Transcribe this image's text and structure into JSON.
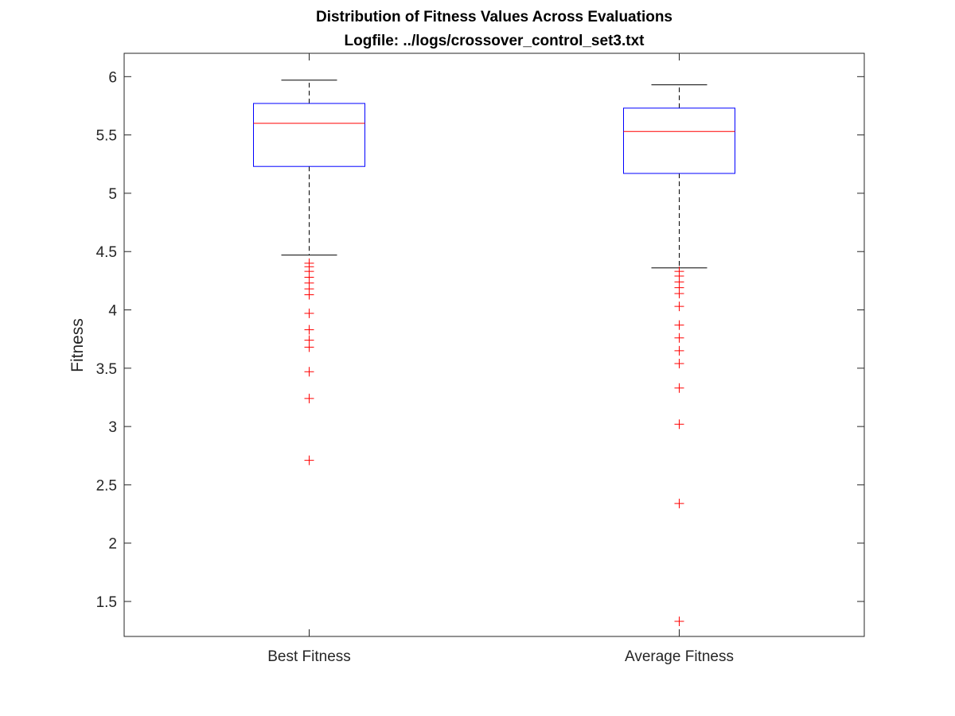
{
  "chart_data": {
    "type": "box",
    "title": "Distribution of Fitness Values Across Evaluations",
    "subtitle": "Logfile: ../logs/crossover_control_set3.txt",
    "xlabel": "",
    "ylabel": "Fitness",
    "categories": [
      "Best Fitness",
      "Average Fitness"
    ],
    "ylim": [
      1.2,
      6.2
    ],
    "yticks": [
      1.5,
      2,
      2.5,
      3,
      3.5,
      4,
      4.5,
      5,
      5.5,
      6
    ],
    "ytick_labels": [
      "1.5",
      "2",
      "2.5",
      "3",
      "3.5",
      "4",
      "4.5",
      "5",
      "5.5",
      "6"
    ],
    "grid": false,
    "boxes": [
      {
        "category": "Best Fitness",
        "whisker_low": 4.47,
        "q1": 5.23,
        "median": 5.6,
        "q3": 5.77,
        "whisker_high": 5.97,
        "outliers": [
          4.4,
          4.37,
          4.33,
          4.28,
          4.23,
          4.18,
          4.13,
          3.97,
          3.83,
          3.74,
          3.68,
          3.47,
          3.24,
          2.71
        ]
      },
      {
        "category": "Average Fitness",
        "whisker_low": 4.36,
        "q1": 5.17,
        "median": 5.53,
        "q3": 5.73,
        "whisker_high": 5.93,
        "outliers": [
          4.33,
          4.29,
          4.24,
          4.19,
          4.14,
          4.03,
          3.87,
          3.76,
          3.65,
          3.54,
          3.33,
          3.02,
          2.34,
          1.33
        ]
      }
    ],
    "colors": {
      "box": "#0000ff",
      "median": "#ff0000",
      "whisker": "#000000",
      "outlier": "#ff0000",
      "axes": "#262626"
    }
  }
}
